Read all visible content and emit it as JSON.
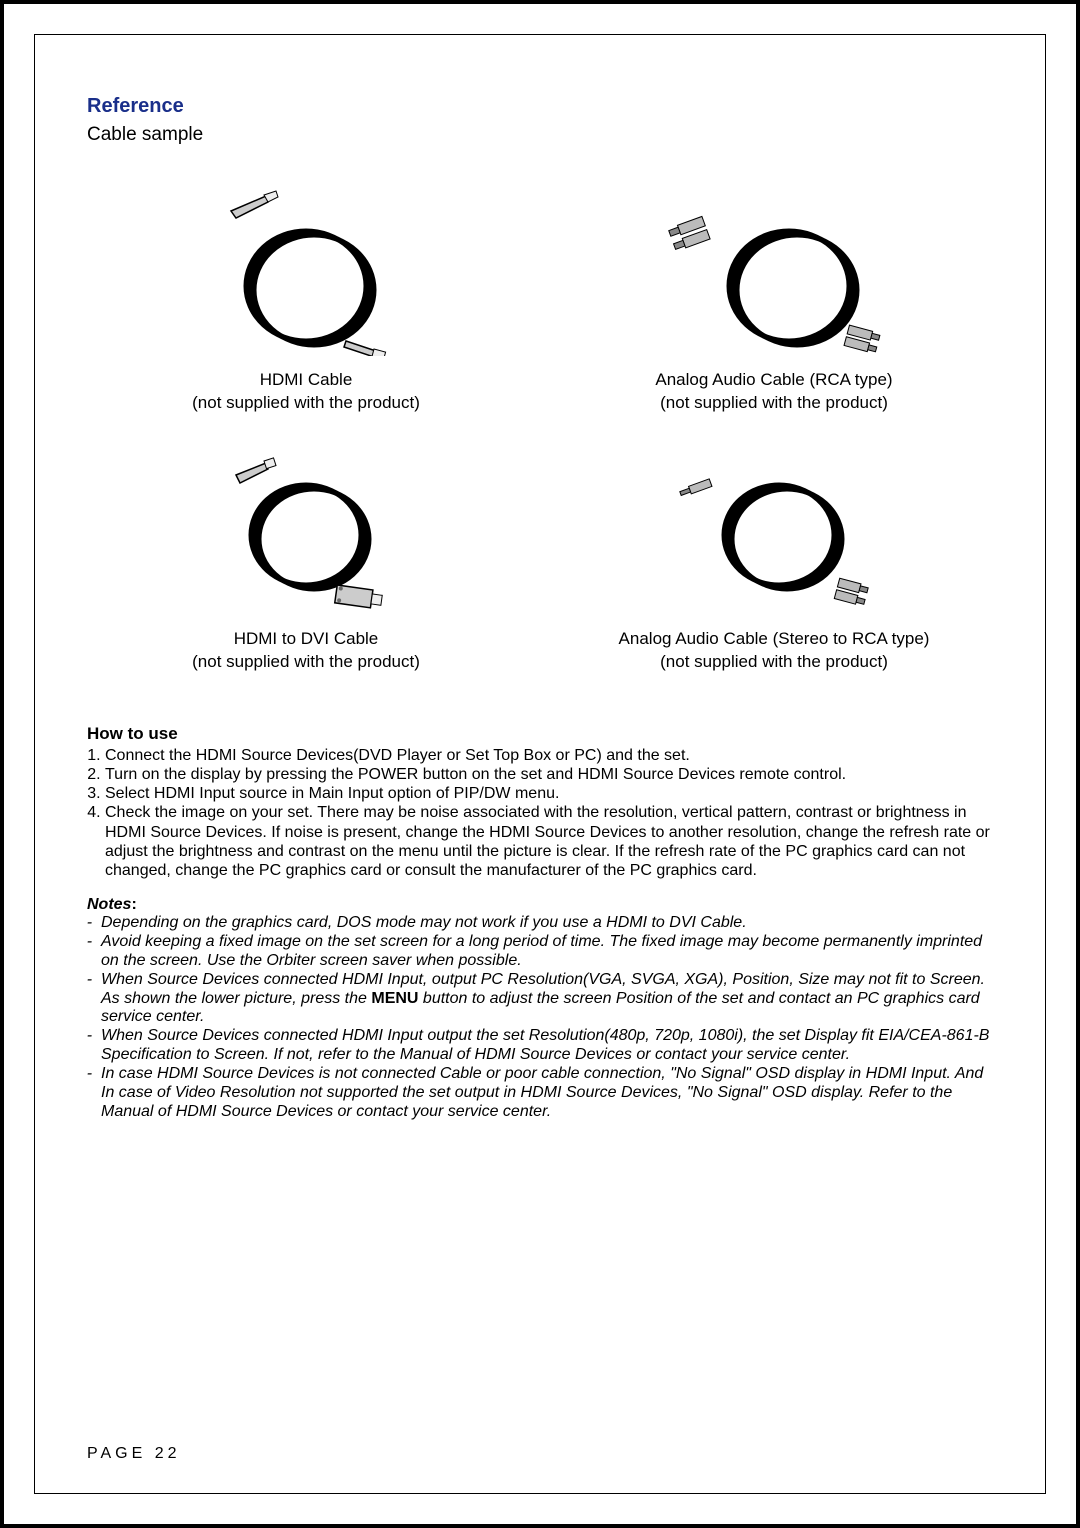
{
  "header": {
    "title": "Reference",
    "subtitle": "Cable sample"
  },
  "cables": {
    "hdmi": {
      "name": "HDMI Cable",
      "note": "(not supplied with the product)"
    },
    "analog_rca": {
      "name": "Analog Audio Cable (RCA type)",
      "note": "(not supplied with the product)"
    },
    "hdmi_dvi": {
      "name": "HDMI to DVI Cable",
      "note": "(not supplied with the product)"
    },
    "analog_stereo": {
      "name": "Analog Audio Cable (Stereo to RCA type)",
      "note": "(not supplied with the product)"
    }
  },
  "howto": {
    "title": "How to use",
    "steps": [
      "Connect the HDMI Source Devices(DVD Player or Set Top Box or PC) and the set.",
      "Turn on the display by pressing the POWER button on the set and HDMI Source Devices remote control.",
      "Select HDMI Input source in Main Input option of PIP/DW menu.",
      "Check the image on your set. There may be noise associated with the resolution, vertical pattern, contrast or brightness in HDMI Source Devices. If noise is present, change the HDMI Source Devices to another resolution, change the refresh rate or adjust the brightness and contrast on the menu until the picture is clear. If the refresh rate of the PC graphics card can not changed, change the PC graphics card or consult the manufacturer of the PC graphics card."
    ]
  },
  "notes": {
    "title": "Notes",
    "colon": ":",
    "items": [
      "Depending on the graphics card, DOS mode may not work if you use a HDMI to DVI Cable.",
      "Avoid keeping a fixed image on the set screen for a long period of time. The fixed image may become permanently imprinted on the screen. Use the Orbiter screen saver when possible.",
      "When Source Devices connected HDMI Input, output PC Resolution(VGA, SVGA, XGA), Position, Size may not fit to Screen. As shown the lower picture, press the MENU button to adjust the screen Position of the set and contact an PC graphics card service center.",
      "When Source Devices connected HDMI Input output the set Resolution(480p, 720p, 1080i), the set Display fit EIA/CEA-861-B Specification to Screen. If not, refer to the Manual of HDMI Source Devices or contact your service center.",
      "In case HDMI Source Devices is not connected Cable or poor cable connection,  \"No Signal\" OSD display in HDMI Input. And In case of Video Resolution not supported the set output in HDMI Source Devices, \"No Signal\" OSD display. Refer to the Manual of HDMI Source Devices or contact your service center."
    ]
  },
  "page": "PAGE 22",
  "style": {
    "title_color": "#1a2f8a",
    "text_color": "#000000",
    "frame_border": "#000000"
  }
}
